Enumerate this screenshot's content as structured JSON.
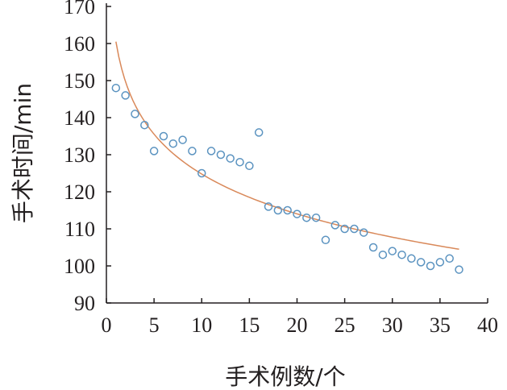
{
  "chart_data": {
    "type": "scatter",
    "xlabel": "手术例数/个",
    "ylabel": "手术时间/min",
    "xlim": [
      0,
      40
    ],
    "ylim": [
      90,
      170
    ],
    "xticks": [
      0,
      5,
      10,
      15,
      20,
      25,
      30,
      35,
      40
    ],
    "yticks": [
      90,
      100,
      110,
      120,
      130,
      140,
      150,
      160,
      170
    ],
    "grid": false,
    "colors": {
      "points": "#5b93c0",
      "trendline": "#d9895a"
    },
    "series": [
      {
        "marker": "hollow-circle",
        "x": [
          1,
          2,
          3,
          4,
          5,
          6,
          7,
          8,
          9,
          10,
          11,
          12,
          13,
          14,
          15,
          16,
          17,
          18,
          19,
          20,
          21,
          22,
          23,
          24,
          25,
          26,
          27,
          28,
          29,
          30,
          31,
          32,
          33,
          34,
          35,
          36,
          37
        ],
        "y": [
          148,
          146,
          141,
          138,
          131,
          135,
          133,
          134,
          131,
          125,
          131,
          130,
          129,
          128,
          127,
          136,
          116,
          115,
          115,
          114,
          113,
          113,
          107,
          111,
          110,
          110,
          109,
          105,
          103,
          104,
          103,
          102,
          101,
          100,
          101,
          102,
          99
        ]
      }
    ],
    "trendline": {
      "type": "logarithmic",
      "x_range": [
        1,
        37
      ],
      "y_start": 160.5,
      "y_end": 104.5
    }
  }
}
